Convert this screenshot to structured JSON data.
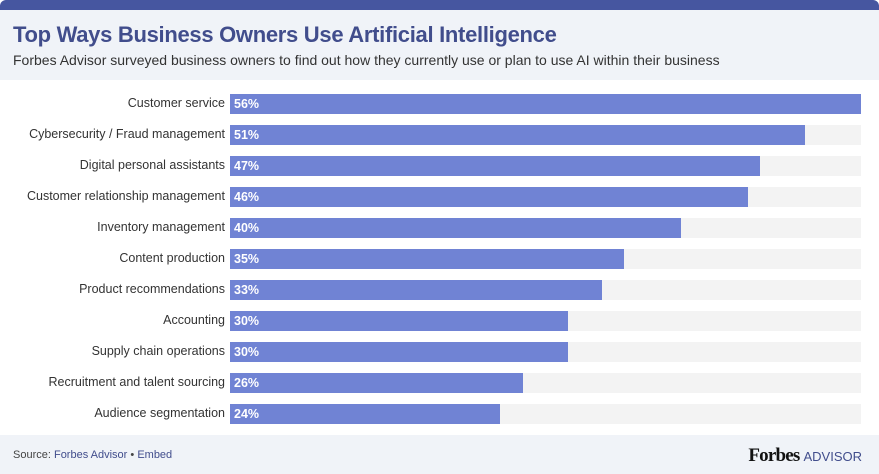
{
  "header": {
    "title": "Top Ways Business Owners Use Artificial Intelligence",
    "subtitle": "Forbes Advisor surveyed business owners to find out how they currently use or plan to use AI within their business"
  },
  "colors": {
    "bar": "#7083d4",
    "track": "#f3f3f3",
    "accent": "#414d8c",
    "topbar": "#4656a0"
  },
  "chart_data": {
    "type": "bar",
    "orientation": "horizontal",
    "categories": [
      "Customer service",
      "Cybersecurity / Fraud management",
      "Digital personal assistants",
      "Customer relationship management",
      "Inventory management",
      "Content production",
      "Product recommendations",
      "Accounting",
      "Supply chain operations",
      "Recruitment and talent sourcing",
      "Audience segmentation"
    ],
    "values": [
      56,
      51,
      47,
      46,
      40,
      35,
      33,
      30,
      30,
      26,
      24
    ],
    "labels": [
      "56%",
      "51%",
      "47%",
      "46%",
      "40%",
      "35%",
      "33%",
      "30%",
      "30%",
      "26%",
      "24%"
    ],
    "xlim": [
      0,
      56
    ],
    "grid": false,
    "unit": "%"
  },
  "footer": {
    "source_prefix": "Source: ",
    "source_link": "Forbes Advisor",
    "separator": " • ",
    "embed": "Embed",
    "logo_forbes": "Forbes",
    "logo_advisor": "ADVISOR"
  }
}
